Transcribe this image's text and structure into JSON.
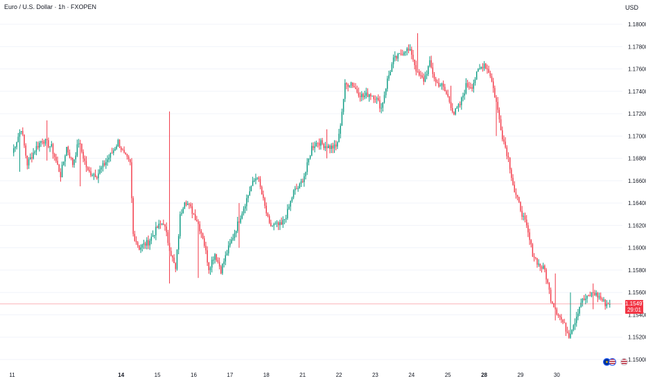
{
  "header": {
    "symbol_title": "Euro / U.S. Dollar · 1h · FXOPEN",
    "currency": "USD"
  },
  "colors": {
    "up": "#089981",
    "down": "#f23645",
    "grid": "#f0f3fa",
    "price_line": "#f23645"
  },
  "chart_data": {
    "type": "candlestick",
    "y_ticks": [
      "1.18000",
      "1.17800",
      "1.17600",
      "1.17400",
      "1.17200",
      "1.17000",
      "1.16800",
      "1.16600",
      "1.16400",
      "1.16200",
      "1.16000",
      "1.15800",
      "1.15600",
      "1.15400",
      "1.15200",
      "1.15000"
    ],
    "ylim": [
      1.1497,
      1.1812
    ],
    "x_labels": [
      {
        "label": "11",
        "i": 0,
        "bold": false
      },
      {
        "label": "14",
        "i": 72,
        "bold": true
      },
      {
        "label": "15",
        "i": 96,
        "bold": false
      },
      {
        "label": "16",
        "i": 120,
        "bold": false
      },
      {
        "label": "17",
        "i": 144,
        "bold": false
      },
      {
        "label": "18",
        "i": 168,
        "bold": false
      },
      {
        "label": "21",
        "i": 192,
        "bold": false
      },
      {
        "label": "22",
        "i": 216,
        "bold": false
      },
      {
        "label": "23",
        "i": 240,
        "bold": false
      },
      {
        "label": "24",
        "i": 264,
        "bold": false
      },
      {
        "label": "25",
        "i": 288,
        "bold": false
      },
      {
        "label": "28",
        "i": 312,
        "bold": true
      },
      {
        "label": "29",
        "i": 336,
        "bold": false
      },
      {
        "label": "30",
        "i": 360,
        "bold": false
      }
    ],
    "x_slots": [
      -3,
      380
    ],
    "current_price": "1.15497",
    "countdown": "29:01",
    "current_value": 1.15497,
    "anchors": [
      [
        0,
        1.1685
      ],
      [
        6,
        1.1707
      ],
      [
        10,
        1.1675
      ],
      [
        16,
        1.169
      ],
      [
        20,
        1.1697
      ],
      [
        26,
        1.169
      ],
      [
        32,
        1.1665
      ],
      [
        36,
        1.169
      ],
      [
        40,
        1.1675
      ],
      [
        44,
        1.1695
      ],
      [
        50,
        1.1668
      ],
      [
        56,
        1.1665
      ],
      [
        60,
        1.1673
      ],
      [
        66,
        1.1685
      ],
      [
        70,
        1.1695
      ],
      [
        74,
        1.1683
      ],
      [
        78,
        1.1675
      ],
      [
        80,
        1.1612
      ],
      [
        84,
        1.16
      ],
      [
        90,
        1.1605
      ],
      [
        96,
        1.1618
      ],
      [
        100,
        1.1623
      ],
      [
        104,
        1.16
      ],
      [
        108,
        1.158
      ],
      [
        111,
        1.1628
      ],
      [
        114,
        1.1643
      ],
      [
        118,
        1.1635
      ],
      [
        122,
        1.1625
      ],
      [
        126,
        1.161
      ],
      [
        130,
        1.1582
      ],
      [
        134,
        1.1595
      ],
      [
        138,
        1.158
      ],
      [
        142,
        1.1596
      ],
      [
        146,
        1.161
      ],
      [
        150,
        1.1625
      ],
      [
        154,
        1.164
      ],
      [
        158,
        1.1655
      ],
      [
        162,
        1.1665
      ],
      [
        166,
        1.1642
      ],
      [
        170,
        1.162
      ],
      [
        174,
        1.162
      ],
      [
        178,
        1.162
      ],
      [
        182,
        1.1632
      ],
      [
        186,
        1.165
      ],
      [
        190,
        1.1655
      ],
      [
        194,
        1.1668
      ],
      [
        198,
        1.169
      ],
      [
        202,
        1.1695
      ],
      [
        206,
        1.1692
      ],
      [
        210,
        1.169
      ],
      [
        214,
        1.169
      ],
      [
        216,
        1.17
      ],
      [
        220,
        1.1745
      ],
      [
        224,
        1.1748
      ],
      [
        228,
        1.174
      ],
      [
        232,
        1.1735
      ],
      [
        236,
        1.1738
      ],
      [
        240,
        1.1735
      ],
      [
        244,
        1.1725
      ],
      [
        248,
        1.175
      ],
      [
        252,
        1.1768
      ],
      [
        256,
        1.1772
      ],
      [
        260,
        1.1778
      ],
      [
        264,
        1.1774
      ],
      [
        268,
        1.1755
      ],
      [
        272,
        1.175
      ],
      [
        276,
        1.1765
      ],
      [
        280,
        1.1748
      ],
      [
        284,
        1.1745
      ],
      [
        288,
        1.1735
      ],
      [
        292,
        1.172
      ],
      [
        296,
        1.1728
      ],
      [
        300,
        1.1745
      ],
      [
        304,
        1.1745
      ],
      [
        308,
        1.1758
      ],
      [
        312,
        1.1765
      ],
      [
        316,
        1.1755
      ],
      [
        320,
        1.173
      ],
      [
        324,
        1.17
      ],
      [
        328,
        1.168
      ],
      [
        332,
        1.165
      ],
      [
        336,
        1.1635
      ],
      [
        340,
        1.1618
      ],
      [
        344,
        1.1595
      ],
      [
        348,
        1.1585
      ],
      [
        352,
        1.158
      ],
      [
        356,
        1.1555
      ],
      [
        360,
        1.1543
      ],
      [
        364,
        1.1533
      ],
      [
        368,
        1.1522
      ],
      [
        372,
        1.1535
      ],
      [
        376,
        1.1552
      ],
      [
        380,
        1.1555
      ],
      [
        384,
        1.156
      ],
      [
        388,
        1.1556
      ],
      [
        392,
        1.155
      ],
      [
        395,
        1.155
      ]
    ],
    "spikes": [
      {
        "i": 5,
        "high": 1.1706,
        "low": 1.1668
      },
      {
        "i": 23,
        "high": 1.1714,
        "low": 1.1678
      },
      {
        "i": 45,
        "high": 1.1696,
        "low": 1.1655
      },
      {
        "i": 104,
        "high": 1.1722,
        "low": 1.1568
      },
      {
        "i": 123,
        "high": 1.1618,
        "low": 1.1573
      },
      {
        "i": 150,
        "high": 1.164,
        "low": 1.16
      },
      {
        "i": 208,
        "high": 1.1706,
        "low": 1.168
      },
      {
        "i": 268,
        "high": 1.1792,
        "low": 1.1762
      },
      {
        "i": 290,
        "high": 1.1745,
        "low": 1.1725
      },
      {
        "i": 320,
        "high": 1.172,
        "low": 1.17
      },
      {
        "i": 359,
        "high": 1.1577,
        "low": 1.1535
      },
      {
        "i": 369,
        "high": 1.156,
        "low": 1.1521
      },
      {
        "i": 384,
        "high": 1.1568,
        "low": 1.1545
      }
    ],
    "grid": true
  }
}
